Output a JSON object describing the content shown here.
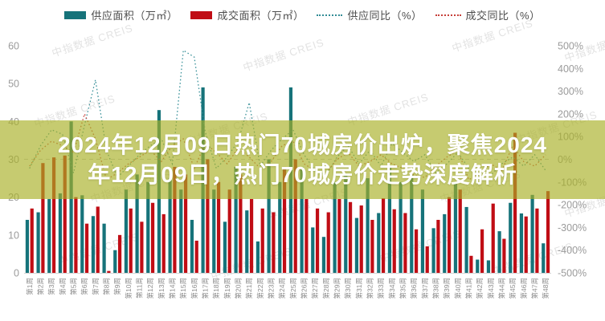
{
  "watermark": "中指数据 CREIS",
  "banner": {
    "line1": "2024年12月09日热门70城房价出炉，聚焦2024",
    "line2": "年12月09日，热门70城房价走势深度解析"
  },
  "chart_data": {
    "type": "bar",
    "subtype": "grouped bars with two dotted YoY lines, dual y-axes",
    "legend_position": "top",
    "grid": "off",
    "categories": [
      "第1周",
      "第2周",
      "第3周",
      "第4周",
      "第5周",
      "第6周",
      "第7周",
      "第8周",
      "第9周",
      "第10周",
      "第11周",
      "第12周",
      "第13周",
      "第14周",
      "第15周",
      "第16周",
      "第17周",
      "第18周",
      "第19周",
      "第20周",
      "第21周",
      "第22周",
      "第23周",
      "第24周",
      "第25周",
      "第26周",
      "第27周",
      "第28周",
      "第29周",
      "第30周",
      "第31周",
      "第32周",
      "第33周",
      "第34周",
      "第35周",
      "第36周",
      "第37周",
      "第38周",
      "第39周",
      "第40周",
      "第41周",
      "第42周",
      "第43周",
      "第44周",
      "第45周",
      "第46周",
      "第47周",
      "第48周"
    ],
    "series": [
      {
        "name": "供应面积（万㎡）",
        "type": "bar",
        "axis": "left",
        "color": "#16737a",
        "values": [
          14,
          16,
          19.5,
          21,
          40,
          20.5,
          15,
          13,
          6,
          22,
          26,
          24,
          43,
          25,
          22,
          14,
          49,
          22,
          13.5,
          28,
          16.5,
          8.3,
          30,
          24,
          49,
          28,
          12,
          9.5,
          24,
          26,
          14.5,
          25,
          15.8,
          28,
          24,
          26,
          22,
          11.8,
          15.5,
          24,
          17.4,
          3.5,
          3.3,
          11,
          18.5,
          15.7,
          20.6,
          7.8
        ]
      },
      {
        "name": "成交面积（万㎡）",
        "type": "bar",
        "axis": "left",
        "color": "#c00d15",
        "values": [
          17,
          29,
          30.5,
          31,
          20,
          13,
          17.5,
          0.5,
          10,
          17,
          13.5,
          18.5,
          15.5,
          28,
          26,
          8.5,
          30,
          24,
          22,
          26,
          19.5,
          17,
          16,
          28,
          30,
          19.5,
          17,
          16,
          19.5,
          18.7,
          17.8,
          14,
          19.7,
          16.8,
          15.8,
          11.5,
          7,
          14,
          20,
          22,
          4.5,
          11.5,
          18.3,
          9,
          37,
          14.9,
          17,
          21.6
        ]
      },
      {
        "name": "供应同比（%）",
        "type": "line",
        "style": "dotted",
        "axis": "right",
        "color": "#338d96",
        "values": [
          -40,
          60,
          130,
          110,
          -60,
          150,
          350,
          40,
          -80,
          -30,
          20,
          60,
          90,
          -20,
          480,
          450,
          120,
          -40,
          10,
          80,
          250,
          -30,
          40,
          90,
          130,
          20,
          -50,
          -70,
          10,
          60,
          -20,
          40,
          -30,
          70,
          30,
          -10,
          20,
          -60,
          -20,
          30,
          -40,
          -80,
          -70,
          -20,
          10,
          -30,
          20,
          -50
        ]
      },
      {
        "name": "成交同比（%）",
        "type": "line",
        "style": "dotted",
        "axis": "right",
        "color": "#c6403a",
        "values": [
          -30,
          40,
          80,
          60,
          30,
          200,
          90,
          -90,
          -60,
          -20,
          10,
          40,
          -10,
          60,
          90,
          -40,
          70,
          30,
          -20,
          50,
          10,
          -40,
          -10,
          60,
          80,
          -20,
          -50,
          -60,
          0,
          30,
          -30,
          -10,
          20,
          -20,
          -40,
          -70,
          -80,
          -30,
          10,
          40,
          -90,
          -60,
          -20,
          -50,
          60,
          -10,
          -30,
          20
        ]
      }
    ],
    "left_axis": {
      "ticks": [
        "60",
        "50",
        "40",
        "30",
        "20",
        "10",
        "0"
      ],
      "range": [
        0,
        60
      ]
    },
    "right_axis": {
      "ticks": [
        "500%",
        "400%",
        "300%",
        "200%",
        "100%",
        "0%",
        "-100%",
        "-200%",
        "-300%",
        "-400%",
        "-500%"
      ],
      "range": [
        -500,
        500
      ]
    }
  }
}
